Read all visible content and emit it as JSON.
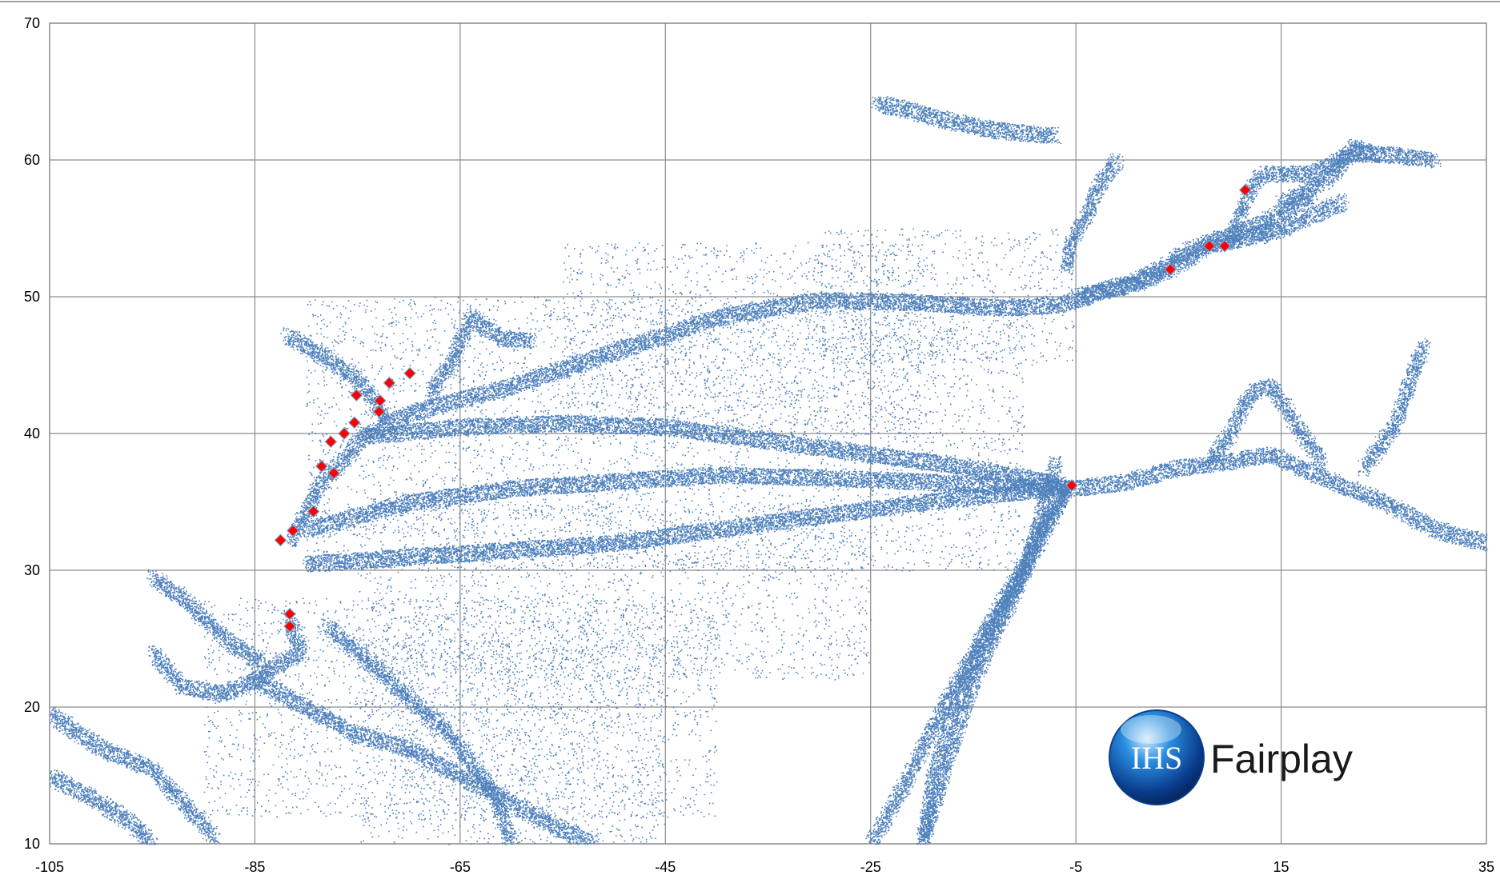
{
  "chart_data": {
    "type": "scatter",
    "title": "",
    "xlabel": "",
    "ylabel": "",
    "xlim": [
      -105,
      35
    ],
    "ylim": [
      10,
      70
    ],
    "x_ticks": [
      -105,
      -85,
      -65,
      -45,
      -25,
      -5,
      15,
      35
    ],
    "y_ticks": [
      10,
      20,
      30,
      40,
      50,
      60,
      70
    ],
    "grid": true,
    "legend": "none",
    "series": [
      {
        "color": "#4f81bd",
        "marker": "dot",
        "description_free": true,
        "routes": [
          [
            [
              -81.5,
              32.1
            ],
            [
              -79,
              36
            ],
            [
              -74.5,
              39.8
            ],
            [
              -70,
              41.5
            ],
            [
              -60,
              43.5
            ],
            [
              -50,
              46
            ],
            [
              -40,
              48.5
            ],
            [
              -30,
              49.8
            ],
            [
              -20,
              49.6
            ],
            [
              -12,
              49.2
            ],
            [
              -6,
              49.5
            ],
            [
              -3,
              50.3
            ],
            [
              0,
              51
            ],
            [
              3,
              52
            ],
            [
              6,
              53.5
            ],
            [
              9,
              54.3
            ],
            [
              12,
              55
            ],
            [
              18,
              57.5
            ]
          ],
          [
            [
              -74.5,
              39.8
            ],
            [
              -65,
              40.5
            ],
            [
              -55,
              40.8
            ],
            [
              -45,
              40.5
            ],
            [
              -35,
              39.5
            ],
            [
              -25,
              38.5
            ],
            [
              -15,
              37.5
            ],
            [
              -8,
              36.5
            ],
            [
              -5.5,
              36
            ]
          ],
          [
            [
              -80,
              33
            ],
            [
              -70,
              35
            ],
            [
              -60,
              36
            ],
            [
              -50,
              36.5
            ],
            [
              -40,
              37
            ],
            [
              -30,
              36.8
            ],
            [
              -20,
              36.5
            ],
            [
              -12,
              36.2
            ],
            [
              -6,
              36
            ]
          ],
          [
            [
              -80,
              30.5
            ],
            [
              -70,
              31
            ],
            [
              -60,
              31.5
            ],
            [
              -50,
              32
            ],
            [
              -40,
              33
            ],
            [
              -30,
              34
            ],
            [
              -20,
              35
            ],
            [
              -10,
              35.8
            ],
            [
              -6,
              36
            ]
          ],
          [
            [
              -5.5,
              36
            ],
            [
              0,
              36.5
            ],
            [
              5,
              37.5
            ],
            [
              10,
              38
            ],
            [
              14,
              38.5
            ],
            [
              20,
              36.5
            ],
            [
              25,
              35
            ],
            [
              30,
              33
            ],
            [
              35,
              32
            ]
          ],
          [
            [
              8,
              38
            ],
            [
              10,
              40
            ],
            [
              12,
              43
            ],
            [
              14,
              43.5
            ],
            [
              17,
              40
            ],
            [
              19,
              38
            ]
          ],
          [
            [
              23,
              37.5
            ],
            [
              26,
              40.5
            ],
            [
              28,
              45
            ],
            [
              29,
              46.5
            ]
          ],
          [
            [
              -81.8,
              26.5
            ],
            [
              -80.5,
              24
            ],
            [
              -83,
              23
            ],
            [
              -85,
              22
            ],
            [
              -88,
              21
            ],
            [
              -92,
              21.5
            ],
            [
              -95,
              24
            ]
          ],
          [
            [
              -95,
              29.5
            ],
            [
              -92,
              28
            ],
            [
              -90,
              26.5
            ],
            [
              -88,
              25
            ],
            [
              -86,
              24
            ],
            [
              -84,
              23
            ]
          ],
          [
            [
              -85,
              22
            ],
            [
              -80,
              20
            ],
            [
              -75,
              18
            ],
            [
              -70,
              17
            ],
            [
              -65,
              15
            ],
            [
              -60,
              13
            ],
            [
              -55,
              11
            ],
            [
              -52,
              10
            ]
          ],
          [
            [
              -78,
              26
            ],
            [
              -72,
              22
            ],
            [
              -66,
              18
            ],
            [
              -62,
              14
            ],
            [
              -60,
              10
            ]
          ],
          [
            [
              -105,
              19.5
            ],
            [
              -100,
              17
            ],
            [
              -95,
              15.5
            ],
            [
              -92,
              13
            ],
            [
              -89,
              10.5
            ]
          ],
          [
            [
              -105,
              15
            ],
            [
              -100,
              13
            ],
            [
              -97,
              11.5
            ],
            [
              -95,
              10
            ]
          ],
          [
            [
              -6,
              36
            ],
            [
              -10,
              30
            ],
            [
              -14,
              25
            ],
            [
              -17,
              20
            ],
            [
              -19,
              15
            ],
            [
              -20,
              10
            ]
          ],
          [
            [
              -6,
              36
            ],
            [
              -12,
              28
            ],
            [
              -18,
              20
            ],
            [
              -22,
              14
            ],
            [
              -25,
              10
            ]
          ],
          [
            [
              -7,
              38
            ],
            [
              -10,
              30
            ],
            [
              -15,
              22
            ],
            [
              -18,
              15
            ],
            [
              -20,
              10
            ]
          ],
          [
            [
              -68,
              43
            ],
            [
              -66,
              45
            ],
            [
              -64,
              48.5
            ],
            [
              -61,
              47
            ],
            [
              -58,
              46.8
            ]
          ],
          [
            [
              -72,
              41
            ],
            [
              -75,
              44
            ],
            [
              -79,
              46
            ],
            [
              -82,
              47.2
            ]
          ],
          [
            [
              -24.5,
              64.2
            ],
            [
              -22,
              63.8
            ],
            [
              -18,
              63
            ],
            [
              -13,
              62.2
            ],
            [
              -7,
              61.8
            ]
          ],
          [
            [
              -6,
              52
            ],
            [
              -5.5,
              54
            ],
            [
              -4,
              56
            ],
            [
              -3,
              58
            ],
            [
              -1,
              60
            ]
          ],
          [
            [
              10,
              54
            ],
            [
              11,
              56
            ],
            [
              12,
              58
            ],
            [
              13,
              59
            ],
            [
              18,
              59
            ],
            [
              22,
              60.5
            ],
            [
              26,
              60.4
            ],
            [
              30,
              60.0
            ]
          ],
          [
            [
              15,
              57
            ],
            [
              17,
              57.5
            ],
            [
              20,
              59
            ],
            [
              22,
              61
            ],
            [
              24,
              60.5
            ]
          ],
          [
            [
              13,
              54.5
            ],
            [
              16,
              55.3
            ],
            [
              18,
              56
            ],
            [
              21,
              57
            ]
          ],
          [
            [
              -5,
              50.1
            ],
            [
              -2,
              50.5
            ],
            [
              1,
              51
            ],
            [
              4,
              52
            ],
            [
              8,
              53.8
            ],
            [
              9.5,
              54
            ],
            [
              12,
              54.5
            ],
            [
              14,
              55
            ]
          ]
        ],
        "scatter_boxes": [
          [
            -80,
            -10,
            30,
            50
          ],
          [
            -75,
            -25,
            22,
            35
          ],
          [
            -70,
            -40,
            12,
            28
          ],
          [
            -55,
            -20,
            40,
            54
          ],
          [
            -30,
            -5,
            45,
            55
          ],
          [
            -75,
            -45,
            10,
            25
          ],
          [
            -90,
            -70,
            12,
            28
          ]
        ]
      },
      {
        "color": "#ff0000",
        "marker": "diamond",
        "points": [
          [
            -82.5,
            32.2
          ],
          [
            -81.3,
            32.9
          ],
          [
            -79.3,
            34.3
          ],
          [
            -78.5,
            37.6
          ],
          [
            -77.6,
            39.4
          ],
          [
            -77.3,
            37.1
          ],
          [
            -76.3,
            40.0
          ],
          [
            -75.3,
            40.8
          ],
          [
            -75.1,
            42.8
          ],
          [
            -72.9,
            41.6
          ],
          [
            -72.8,
            42.4
          ],
          [
            -71.9,
            43.7
          ],
          [
            -69.9,
            44.4
          ],
          [
            -81.6,
            26.8
          ],
          [
            -81.6,
            25.9
          ],
          [
            -5.4,
            36.2
          ],
          [
            4.2,
            52.0
          ],
          [
            8.0,
            53.7
          ],
          [
            9.5,
            53.7
          ],
          [
            11.5,
            57.8
          ]
        ]
      }
    ]
  },
  "logo": {
    "mark": "IHS",
    "text": "Fairplay"
  }
}
